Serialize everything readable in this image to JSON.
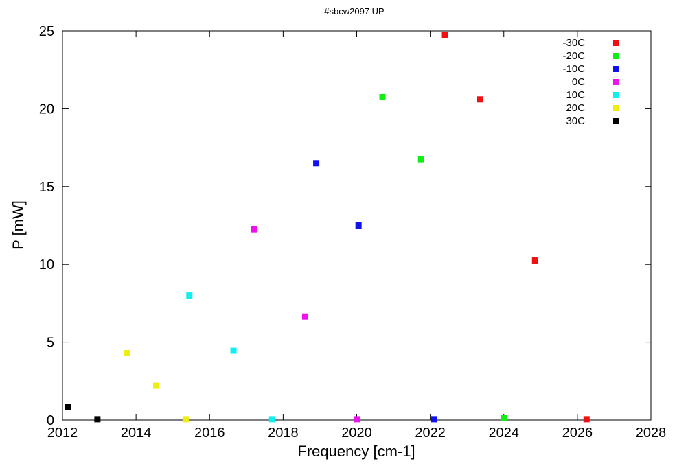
{
  "chart_data": {
    "type": "scatter",
    "title": "#sbcw2097 UP",
    "xlabel": "Frequency [cm-1]",
    "ylabel": "P [mW]",
    "xlim": [
      2012,
      2028
    ],
    "ylim": [
      0,
      25
    ],
    "xticks": [
      2012,
      2014,
      2016,
      2018,
      2020,
      2022,
      2024,
      2026,
      2028
    ],
    "yticks": [
      0,
      5,
      10,
      15,
      20,
      25
    ],
    "grid": false,
    "legend_position": "top-right",
    "series": [
      {
        "name": "-30C",
        "color": "#ee1111",
        "points": [
          [
            2022.4,
            24.75
          ],
          [
            2023.35,
            20.6
          ],
          [
            2024.85,
            10.25
          ],
          [
            2026.25,
            0.05
          ]
        ]
      },
      {
        "name": "-20C",
        "color": "#11ee11",
        "points": [
          [
            2020.7,
            20.75
          ],
          [
            2021.75,
            16.75
          ],
          [
            2024.0,
            0.15
          ]
        ]
      },
      {
        "name": "-10C",
        "color": "#1111ee",
        "points": [
          [
            2018.9,
            16.5
          ],
          [
            2020.05,
            12.5
          ],
          [
            2022.1,
            0.05
          ]
        ]
      },
      {
        "name": "0C",
        "color": "#ee11ee",
        "points": [
          [
            2017.2,
            12.25
          ],
          [
            2018.6,
            6.65
          ],
          [
            2020.0,
            0.05
          ]
        ]
      },
      {
        "name": "10C",
        "color": "#11eeee",
        "points": [
          [
            2015.45,
            8.0
          ],
          [
            2016.65,
            4.45
          ],
          [
            2017.7,
            0.05
          ]
        ]
      },
      {
        "name": "20C",
        "color": "#eeee11",
        "points": [
          [
            2013.75,
            4.3
          ],
          [
            2014.55,
            2.2
          ],
          [
            2015.35,
            0.05
          ]
        ]
      },
      {
        "name": "30C",
        "color": "#000000",
        "points": [
          [
            2012.15,
            0.85
          ],
          [
            2012.95,
            0.05
          ]
        ]
      }
    ]
  }
}
